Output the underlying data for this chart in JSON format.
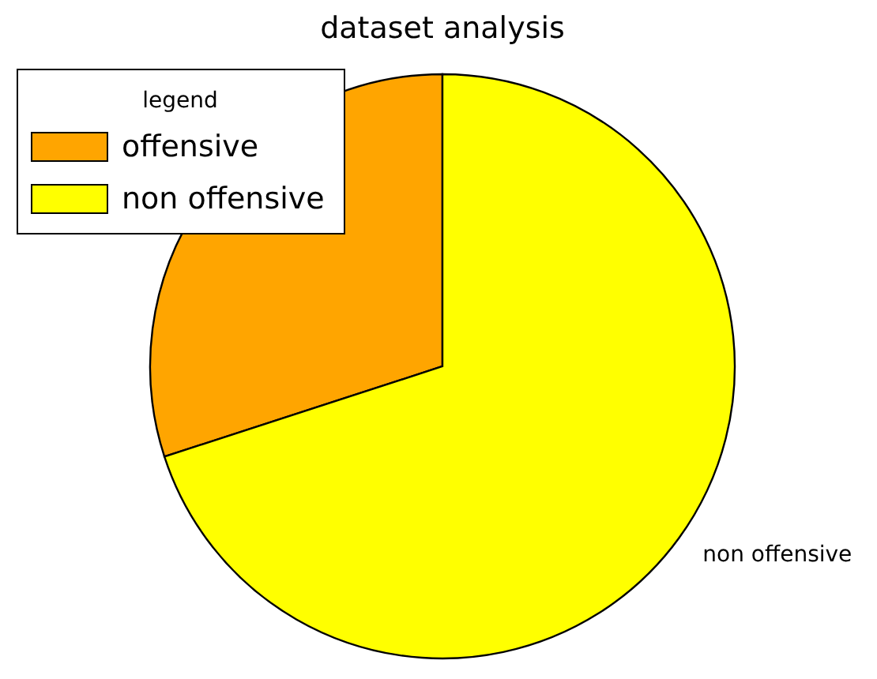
{
  "chart_data": {
    "type": "pie",
    "title": "dataset analysis",
    "categories": [
      "offensive",
      "non offensive"
    ],
    "values": [
      30,
      70
    ],
    "colors": [
      "#ffa500",
      "#ffff00"
    ],
    "legend": "top left",
    "legend_title": "legend"
  }
}
